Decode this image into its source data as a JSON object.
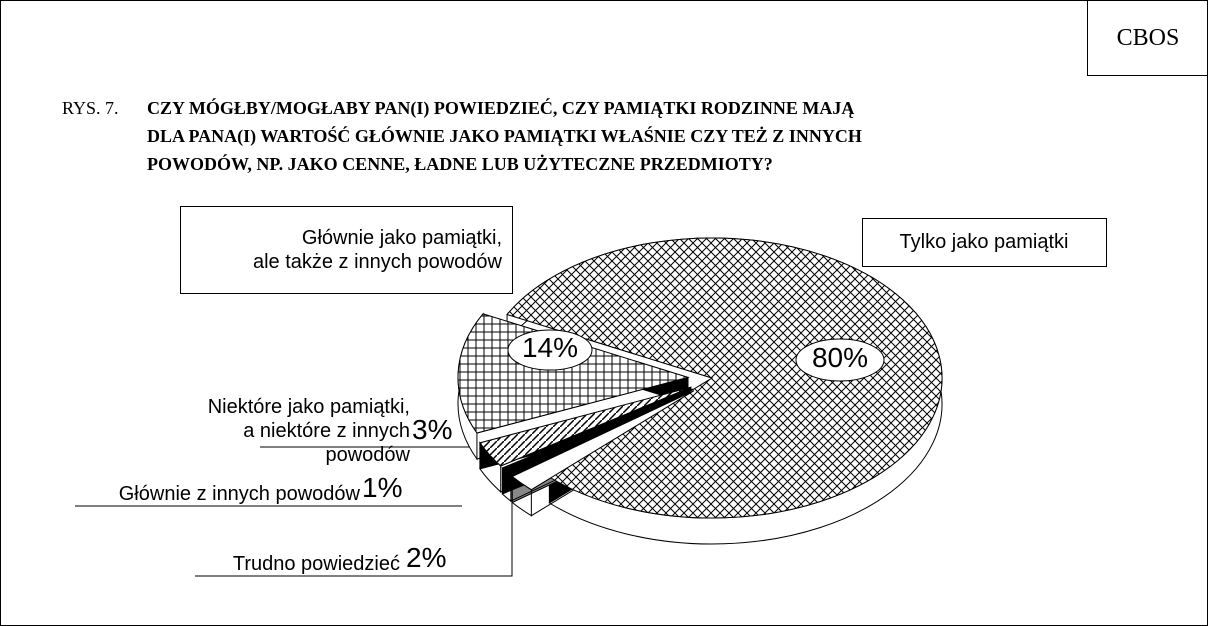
{
  "chart_data": {
    "type": "pie",
    "source": "CBOS",
    "figure_number": "RYS. 7.",
    "title": "CZY MÓGŁBY/MOGŁABY PAN(I) POWIEDZIEĆ, CZY PAMIĄTKI RODZINNE MAJĄ\nDLA PANA(I) WARTOŚĆ GŁÓWNIE JAKO PAMIĄTKI WŁAŚNIE CZY TEŻ Z  INNYCH\nPOWODÓW, NP. JAKO CENNE, ŁADNE LUB UŻYTECZNE PRZEDMIOTY?",
    "categories": [
      "Tylko jako pamiątki",
      "Trudno powiedzieć",
      "Głównie z innych powodów",
      "Niektóre jako pamiątki,\na niektóre z innych powodów",
      "Głównie jako pamiątki,\nale także z innych powodów"
    ],
    "values": [
      80,
      2,
      1,
      3,
      14
    ],
    "value_labels": [
      "80%",
      "2%",
      "1%",
      "3%",
      "14%"
    ]
  }
}
